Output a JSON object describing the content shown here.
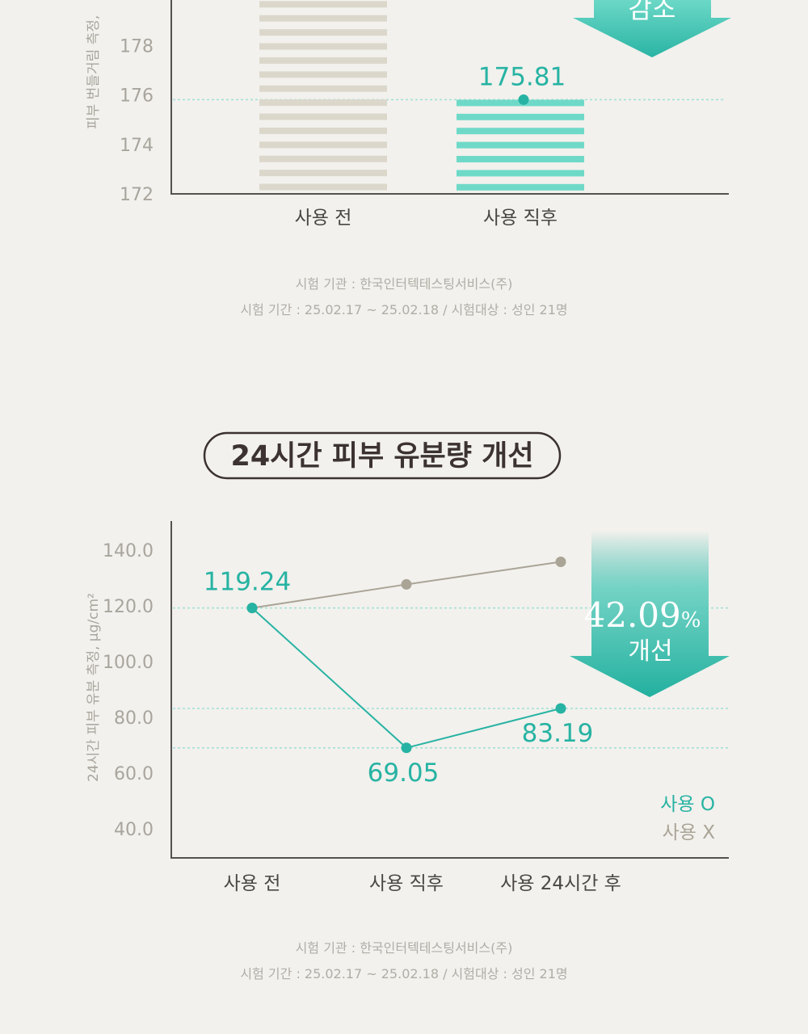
{
  "colors": {
    "background": "#f2f1ed",
    "teal": "#27b3a3",
    "teal_light": "#6fd9c8",
    "beige": "#dcd7cb",
    "gray_line": "#aaa496",
    "axis": "#555150",
    "title_border": "#3b3231"
  },
  "chart_data": [
    {
      "type": "bar",
      "ylabel": "피부 번들거림 측정,",
      "yticks": [
        "172",
        "174",
        "176",
        "178"
      ],
      "ylim": [
        172,
        179.5
      ],
      "categories": [
        "사용 전",
        "사용 직후"
      ],
      "series": [
        {
          "values": [
            179.8,
            175.81
          ]
        }
      ],
      "data_labels": [
        "",
        "175.81"
      ],
      "bar_styles": [
        "beige-striped",
        "teal-striped"
      ],
      "annotation": {
        "text": "감소",
        "shape": "down-arrow"
      },
      "reference_line": 175.81,
      "notes": [
        "시험 기관 : 한국인터텍테스팅서비스(주)",
        "시험 기간 : 25.02.17 ~ 25.02.18 / 시험대상 : 성인 21명"
      ]
    },
    {
      "type": "line",
      "title": "24시간 피부 유분량 개선",
      "ylabel": "24시간 피부 유분 측정, μg/cm²",
      "yticks": [
        "40.0",
        "60.0",
        "80.0",
        "100.0",
        "120.0",
        "140.0"
      ],
      "ylim": [
        30,
        150
      ],
      "categories": [
        "사용 전",
        "사용 직후",
        "사용 24시간 후"
      ],
      "series": [
        {
          "name": "사용 O",
          "values": [
            119.24,
            69.05,
            83.19
          ],
          "color": "#27b3a3"
        },
        {
          "name": "사용 X",
          "values": [
            119.24,
            127.7,
            135.8
          ],
          "color": "#aaa496"
        }
      ],
      "data_labels": [
        "119.24",
        "69.05",
        "83.19"
      ],
      "reference_lines": [
        119.24,
        83.19,
        69.05
      ],
      "annotation": {
        "value": "42.09",
        "unit": "%",
        "text": "개선",
        "shape": "down-arrow"
      },
      "legend_position": "bottom-right",
      "notes": [
        "시험 기관 : 한국인터텍테스팅서비스(주)",
        "시험 기간 : 25.02.17 ~ 25.02.18 / 시험대상 : 성인 21명"
      ]
    }
  ]
}
